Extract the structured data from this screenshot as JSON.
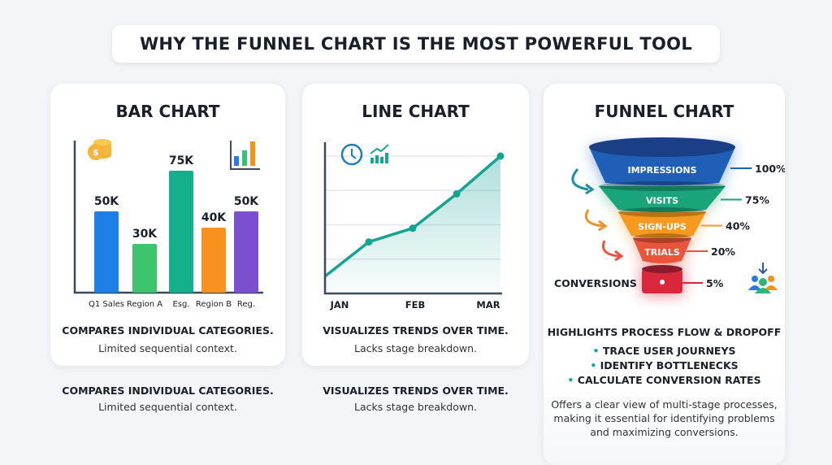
{
  "title": "WHY THE FUNNEL CHART IS THE MOST POWERFUL TOOL",
  "bar_card": {
    "title": "BAR CHART",
    "headline": "COMPARES INDIVIDUAL CATEGORIES.",
    "sub": "Limited sequential context.",
    "icons": [
      "coins-icon",
      "bar-chart-icon"
    ]
  },
  "line_card": {
    "title": "LINE CHART",
    "headline": "VISUALIZES TRENDS OVER TIME.",
    "sub": "Lacks stage breakdown.",
    "icons": [
      "clock-icon",
      "growth-chart-icon"
    ]
  },
  "funnel_card": {
    "title": "FUNNEL CHART",
    "headline": "HIGHLIGHTS PROCESS FLOW & DROPOFF",
    "bullets": [
      "TRACE USER JOURNEYS",
      "IDENTIFY BOTTLENECKS",
      "CALCULATE CONVERSION RATES"
    ],
    "para": [
      "Offers a clear view of multi-stage processes,",
      "making it essential for identifying problems",
      "and maximizing conversions."
    ],
    "icons": [
      "users-icon"
    ]
  },
  "below": {
    "bar_headline": "COMPARES INDIVIDUAL CATEGORIES.",
    "bar_sub": "Limited sequential context.",
    "line_headline": "VISUALIZES TRENDS OVER TIME.",
    "line_sub": "Lacks stage breakdown."
  },
  "chart_data": [
    {
      "type": "bar",
      "categories": [
        "Q1 Sales",
        "Region A",
        "Esg.",
        "Region B",
        "Reg."
      ],
      "values": [
        50,
        30,
        75,
        40,
        50
      ],
      "labels": [
        "50K",
        "30K",
        "75K",
        "40K",
        "50K"
      ],
      "colors": [
        "#1e7fe6",
        "#3fc46e",
        "#14b08c",
        "#f7921e",
        "#7a4fd0"
      ],
      "title": "BAR CHART"
    },
    {
      "type": "line",
      "categories": [
        "JAN",
        "FEB",
        "MAR"
      ],
      "x": [
        0,
        0.5,
        1,
        1.5,
        2
      ],
      "values": [
        0.5,
        1.5,
        1.9,
        2.9,
        4.0
      ],
      "ylim": [
        0,
        4
      ],
      "grid": true,
      "color": "#17a292",
      "title": "LINE CHART"
    },
    {
      "type": "funnel",
      "stages": [
        "IMPRESSIONS",
        "VISITS",
        "SIGN-UPS",
        "TRIALS",
        "CONVERSIONS"
      ],
      "values": [
        100,
        75,
        40,
        20,
        5
      ],
      "labels": [
        "100%",
        "75%",
        "40%",
        "20%",
        "5%"
      ],
      "colors": [
        "#1f5fb8",
        "#1aa47a",
        "#f59a1e",
        "#e8553a",
        "#d9283c"
      ],
      "title": "FUNNEL CHART"
    }
  ]
}
